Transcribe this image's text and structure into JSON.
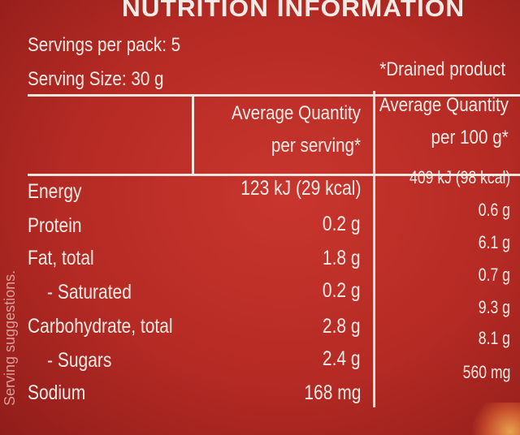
{
  "title": "NUTRITION INFORMATION",
  "servings_per_pack": "Servings per pack: 5",
  "serving_size": "Serving Size: 30 g",
  "drained_note": "*Drained product",
  "side_text": "Serving suggestions.",
  "columns": {
    "per_serving_line1": "Average Quantity",
    "per_serving_line2": "per serving*",
    "per_100g_line1": "Average Quantity",
    "per_100g_line2": "per 100 g*"
  },
  "rows": [
    {
      "name": "Energy",
      "per_serving": "123 kJ (29 kcal)",
      "per_100g": "409 kJ (98 kcal)"
    },
    {
      "name": "Protein",
      "per_serving": "0.2 g",
      "per_100g": "0.6 g"
    },
    {
      "name": "Fat, total",
      "per_serving": "1.8 g",
      "per_100g": "6.1 g"
    },
    {
      "name": "- Saturated",
      "per_serving": "0.2 g",
      "per_100g": "0.7 g"
    },
    {
      "name": "Carbohydrate, total",
      "per_serving": "2.8 g",
      "per_100g": "9.3 g"
    },
    {
      "name": "- Sugars",
      "per_serving": "2.4 g",
      "per_100g": "8.1 g"
    },
    {
      "name": "Sodium",
      "per_serving": "168 mg",
      "per_100g": "560 mg"
    }
  ]
}
